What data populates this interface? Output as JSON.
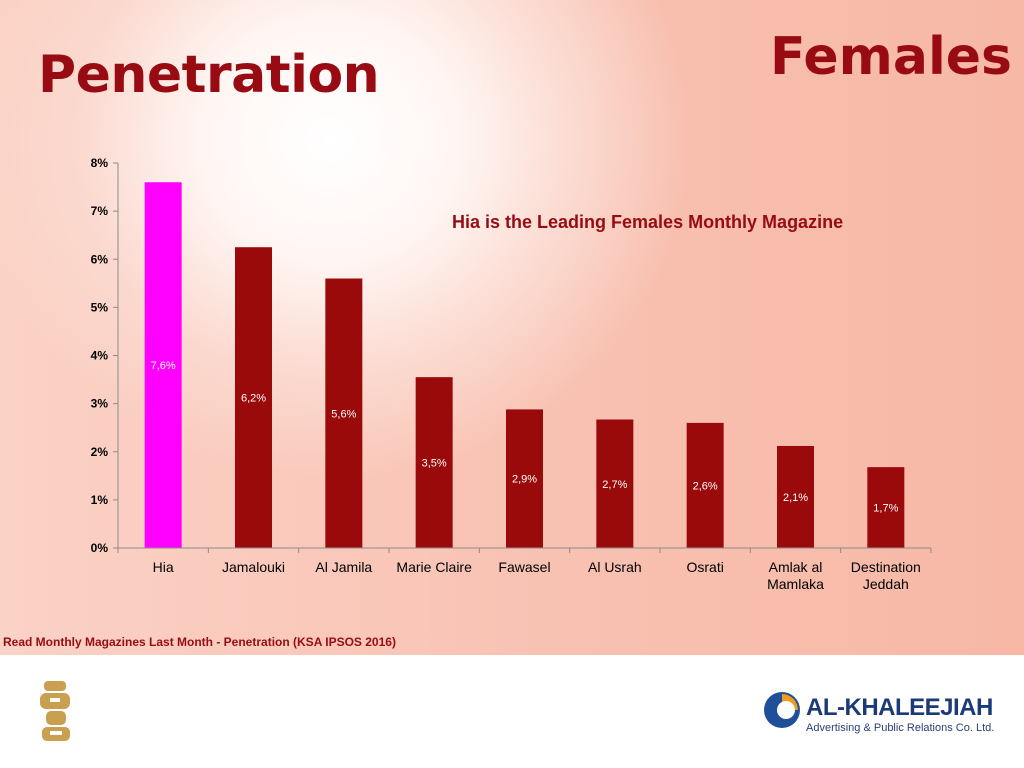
{
  "slide": {
    "title": "Penetration",
    "corner_label": "Females",
    "source": "Read  Monthly Magazines Last Month -  Penetration (KSA IPSOS 2016)"
  },
  "company": {
    "name": "AL-KHALEEJIAH",
    "subtitle": "Advertising & Public Relations Co. Ltd."
  },
  "colors": {
    "title": "#980b12",
    "bar": "#9a0a0a",
    "highlight_bar": "#ff00ff",
    "background": "#f8c0b0"
  },
  "icons": [
    "hia-logo-icon",
    "al-khaleejiah-logo-icon"
  ],
  "chart_data": {
    "type": "bar",
    "title": "",
    "xlabel": "",
    "ylabel": "",
    "categories": [
      "Hia",
      "Jamalouki",
      "Al Jamila",
      "Marie Claire",
      "Fawasel",
      "Al Usrah",
      "Osrati",
      "Amlak al Mamlaka",
      "Destination Jeddah"
    ],
    "values": [
      7.6,
      6.25,
      5.6,
      3.55,
      2.88,
      2.67,
      2.6,
      2.12,
      1.68
    ],
    "value_labels": [
      "7,6%",
      "6,2%",
      "5,6%",
      "3,5%",
      "2,9%",
      "2,7%",
      "2,6%",
      "2,1%",
      "1,7%"
    ],
    "highlight_index": 0,
    "ylim": [
      0,
      8
    ],
    "yticks": [
      0,
      1,
      2,
      3,
      4,
      5,
      6,
      7,
      8
    ],
    "ytick_labels": [
      "0%",
      "1%",
      "2%",
      "3%",
      "4%",
      "5%",
      "6%",
      "7%",
      "8%"
    ],
    "grid": false,
    "legend": "none",
    "annotation": "Hia  is the Leading  Females Monthly Magazine"
  }
}
